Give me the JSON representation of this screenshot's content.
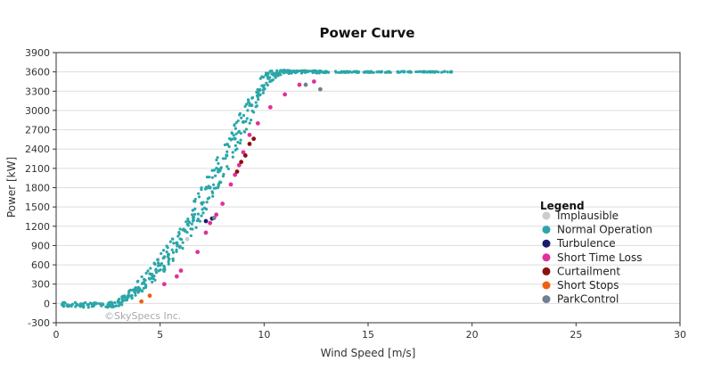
{
  "chart_data": {
    "type": "scatter",
    "title": "Power Curve",
    "xlabel": "Wind Speed [m/s]",
    "ylabel": "Power [kW]",
    "xlim": [
      0,
      30
    ],
    "ylim": [
      -300,
      3900
    ],
    "x_ticks": [
      0,
      5,
      10,
      15,
      20,
      25,
      30
    ],
    "y_ticks": [
      -300,
      0,
      300,
      600,
      900,
      1200,
      1500,
      1800,
      2100,
      2400,
      2700,
      3000,
      3300,
      3600,
      3900
    ],
    "grid": "horizontal",
    "legend_title": "Legend",
    "legend_position": "right",
    "watermark": "©SkySpecs Inc.",
    "series": [
      {
        "name": "Implausible",
        "color": "#cccccc",
        "x": [
          4.9,
          5.2,
          6.3
        ],
        "y": [
          680,
          720,
          1000
        ]
      },
      {
        "name": "Normal Operation",
        "color": "#2ba6a8",
        "x": [
          0.3,
          1.0,
          1.8,
          2.5,
          3.0,
          3.4,
          3.8,
          4.2,
          4.6,
          5.0,
          5.4,
          5.8,
          6.2,
          6.6,
          7.0,
          7.4,
          7.8,
          8.2,
          8.6,
          9.0,
          9.4,
          9.8,
          10.2,
          10.6,
          11.0,
          11.5,
          12.0,
          12.5,
          13.0,
          14.0,
          15.0,
          16.0,
          17.0,
          18.0,
          19.0
        ],
        "y": [
          -20,
          -20,
          -30,
          -30,
          20,
          80,
          200,
          320,
          450,
          600,
          760,
          940,
          1130,
          1340,
          1560,
          1800,
          2050,
          2300,
          2560,
          2820,
          3080,
          3320,
          3500,
          3580,
          3600,
          3600,
          3600,
          3600,
          3600,
          3600,
          3600,
          3600,
          3600,
          3600,
          3600
        ],
        "spread": [
          40,
          40,
          40,
          40,
          60,
          80,
          100,
          130,
          150,
          170,
          190,
          210,
          230,
          250,
          260,
          270,
          270,
          270,
          260,
          250,
          220,
          180,
          120,
          60,
          30,
          20,
          20,
          20,
          15,
          10,
          10,
          10,
          8,
          8,
          8
        ]
      },
      {
        "name": "Turbulence",
        "color": "#1a1a6e",
        "x": [
          7.2,
          7.5
        ],
        "y": [
          1280,
          1320
        ]
      },
      {
        "name": "Short Time Loss",
        "color": "#e0309c",
        "x": [
          5.2,
          5.8,
          6.0,
          6.8,
          7.2,
          7.4,
          7.7,
          8.0,
          8.4,
          8.6,
          8.8,
          9.0,
          9.3,
          9.7,
          10.3,
          11.0,
          11.7,
          12.4
        ],
        "y": [
          300,
          420,
          510,
          800,
          1100,
          1250,
          1380,
          1550,
          1850,
          2000,
          2150,
          2350,
          2620,
          2800,
          3050,
          3250,
          3400,
          3450
        ]
      },
      {
        "name": "Curtailment",
        "color": "#8b1010",
        "x": [
          8.7,
          8.9,
          9.1,
          9.3,
          9.5
        ],
        "y": [
          2050,
          2200,
          2300,
          2480,
          2560
        ]
      },
      {
        "name": "Short Stops",
        "color": "#f06010",
        "x": [
          4.1,
          4.5
        ],
        "y": [
          30,
          120
        ]
      },
      {
        "name": "ParkControl",
        "color": "#708090",
        "x": [
          7.6,
          12.0,
          12.7
        ],
        "y": [
          1330,
          3400,
          3330
        ]
      }
    ]
  }
}
